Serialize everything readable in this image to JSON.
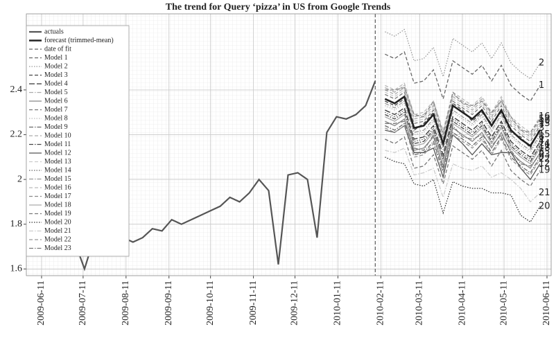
{
  "chart_data": {
    "type": "line",
    "title": "The trend for Query ‘pizza’ in US from Google Trends",
    "xlim": [
      "2009-05-31",
      "2010-06-14"
    ],
    "xticks": [
      "2009-06-11",
      "2009-07-11",
      "2009-08-11",
      "2009-09-11",
      "2009-10-11",
      "2009-11-11",
      "2009-12-11",
      "2010-01-11",
      "2010-02-11",
      "2010-03-11",
      "2010-04-11",
      "2010-05-11",
      "2010-06-11"
    ],
    "ylim": [
      1.57,
      2.74
    ],
    "yticks": [
      1.6,
      1.8,
      2,
      2.2,
      2.4
    ],
    "grid": true,
    "legend": "upper left",
    "actuals": {
      "name": "actuals",
      "color": "#555555",
      "x": [
        "2009-07-05",
        "2009-07-12",
        "2009-07-19",
        "2009-07-26",
        "2009-08-02",
        "2009-08-09",
        "2009-08-16",
        "2009-08-23",
        "2009-08-30",
        "2009-09-06",
        "2009-09-13",
        "2009-09-20",
        "2009-09-27",
        "2009-10-04",
        "2009-10-11",
        "2009-10-18",
        "2009-10-25",
        "2009-11-01",
        "2009-11-08",
        "2009-11-15",
        "2009-11-22",
        "2009-11-29",
        "2009-12-06",
        "2009-12-13",
        "2009-12-20",
        "2009-12-27",
        "2010-01-03",
        "2010-01-10",
        "2010-01-17",
        "2010-01-24",
        "2010-01-31",
        "2010-02-07"
      ],
      "values": [
        1.72,
        1.6,
        1.74,
        1.76,
        1.75,
        1.74,
        1.72,
        1.74,
        1.78,
        1.77,
        1.82,
        1.8,
        1.82,
        1.84,
        1.86,
        1.88,
        1.92,
        1.9,
        1.94,
        2.0,
        1.95,
        1.62,
        2.02,
        2.03,
        2.0,
        1.74,
        2.21,
        2.28,
        2.27,
        2.29,
        2.33,
        2.44
      ]
    },
    "forecast": {
      "name": "forecast (trimmed-mean)",
      "color": "#222222",
      "x": [
        "2010-02-14",
        "2010-02-21",
        "2010-02-28",
        "2010-03-07",
        "2010-03-14",
        "2010-03-21",
        "2010-03-28",
        "2010-04-04",
        "2010-04-11",
        "2010-04-18",
        "2010-04-25",
        "2010-05-02",
        "2010-05-09",
        "2010-05-16",
        "2010-05-23",
        "2010-05-30",
        "2010-06-06"
      ],
      "values": [
        2.36,
        2.34,
        2.37,
        2.23,
        2.24,
        2.29,
        2.16,
        2.33,
        2.3,
        2.27,
        2.31,
        2.24,
        2.31,
        2.22,
        2.18,
        2.15,
        2.22
      ]
    },
    "date_of_fit": {
      "name": "date of fit",
      "x": "2010-02-07",
      "color": "#666666"
    },
    "models": [
      {
        "name": "Model 1",
        "label": "1",
        "color": "#666666",
        "dash": "dashed",
        "values": [
          2.56,
          2.54,
          2.57,
          2.43,
          2.44,
          2.49,
          2.36,
          2.53,
          2.5,
          2.47,
          2.51,
          2.44,
          2.51,
          2.42,
          2.38,
          2.35,
          2.42
        ]
      },
      {
        "name": "Model 2",
        "label": "2",
        "color": "#999999",
        "dash": "dotted",
        "values": [
          2.66,
          2.64,
          2.67,
          2.53,
          2.54,
          2.59,
          2.46,
          2.63,
          2.6,
          2.57,
          2.61,
          2.54,
          2.61,
          2.52,
          2.48,
          2.45,
          2.52
        ]
      },
      {
        "name": "Model 3",
        "label": "3",
        "color": "#444444",
        "dash": "dashed",
        "values": [
          2.35,
          2.33,
          2.36,
          2.22,
          2.25,
          2.3,
          2.15,
          2.34,
          2.31,
          2.26,
          2.3,
          2.25,
          2.3,
          2.21,
          2.19,
          2.14,
          2.23
        ]
      },
      {
        "name": "Model 4",
        "label": "4",
        "color": "#333333",
        "dash": "longdash",
        "values": [
          2.31,
          2.29,
          2.32,
          2.18,
          2.19,
          2.24,
          2.11,
          2.28,
          2.25,
          2.22,
          2.26,
          2.19,
          2.26,
          2.17,
          2.13,
          2.1,
          2.17
        ]
      },
      {
        "name": "Model 5",
        "label": "5",
        "color": "#aaaaaa",
        "dash": "dashdot",
        "values": [
          2.41,
          2.39,
          2.42,
          2.28,
          2.29,
          2.34,
          2.21,
          2.38,
          2.35,
          2.32,
          2.36,
          2.29,
          2.36,
          2.27,
          2.23,
          2.2,
          2.27
        ]
      },
      {
        "name": "Model 6",
        "label": "6",
        "color": "#888888",
        "dash": "solid",
        "values": [
          2.26,
          2.24,
          2.27,
          2.13,
          2.14,
          2.19,
          2.06,
          2.23,
          2.2,
          2.17,
          2.21,
          2.14,
          2.21,
          2.12,
          2.08,
          2.05,
          2.12
        ]
      },
      {
        "name": "Model 7",
        "label": "7",
        "color": "#777777",
        "dash": "dashed",
        "values": [
          2.38,
          2.36,
          2.39,
          2.25,
          2.26,
          2.31,
          2.18,
          2.35,
          2.32,
          2.29,
          2.33,
          2.26,
          2.33,
          2.24,
          2.2,
          2.17,
          2.24
        ]
      },
      {
        "name": "Model 8",
        "label": "8",
        "color": "#bbbbbb",
        "dash": "dotted",
        "values": [
          2.33,
          2.31,
          2.34,
          2.2,
          2.21,
          2.26,
          2.13,
          2.3,
          2.27,
          2.24,
          2.28,
          2.21,
          2.28,
          2.19,
          2.15,
          2.12,
          2.19
        ]
      },
      {
        "name": "Model 9",
        "label": "9",
        "color": "#666666",
        "dash": "dashdot",
        "values": [
          2.24,
          2.22,
          2.25,
          2.11,
          2.12,
          2.17,
          2.04,
          2.21,
          2.18,
          2.15,
          2.19,
          2.12,
          2.19,
          2.1,
          2.06,
          2.03,
          2.1
        ]
      },
      {
        "name": "Model 10",
        "label": "10",
        "color": "#aaaaaa",
        "dash": "dashed",
        "values": [
          2.4,
          2.38,
          2.41,
          2.27,
          2.28,
          2.33,
          2.2,
          2.37,
          2.34,
          2.31,
          2.35,
          2.28,
          2.35,
          2.26,
          2.22,
          2.19,
          2.26
        ]
      },
      {
        "name": "Model 11",
        "label": "11",
        "color": "#444444",
        "dash": "dashdot",
        "values": [
          2.29,
          2.27,
          2.3,
          2.16,
          2.17,
          2.22,
          2.09,
          2.26,
          2.23,
          2.2,
          2.24,
          2.17,
          2.24,
          2.15,
          2.11,
          2.08,
          2.15
        ]
      },
      {
        "name": "Model 12",
        "label": "12",
        "color": "#555555",
        "dash": "solid",
        "values": [
          2.22,
          2.21,
          2.24,
          2.12,
          2.12,
          2.14,
          2.01,
          2.2,
          2.16,
          2.11,
          2.16,
          2.11,
          2.12,
          2.12,
          2.05,
          2.0,
          2.07
        ]
      },
      {
        "name": "Model 13",
        "label": "13",
        "color": "#cccccc",
        "dash": "dashed",
        "values": [
          2.39,
          2.37,
          2.4,
          2.26,
          2.27,
          2.32,
          2.19,
          2.36,
          2.33,
          2.3,
          2.34,
          2.27,
          2.34,
          2.25,
          2.21,
          2.18,
          2.25
        ]
      },
      {
        "name": "Model 14",
        "label": "14",
        "color": "#666666",
        "dash": "dotted",
        "values": [
          2.3,
          2.28,
          2.31,
          2.17,
          2.18,
          2.23,
          2.1,
          2.27,
          2.24,
          2.21,
          2.25,
          2.18,
          2.25,
          2.16,
          2.12,
          2.09,
          2.16
        ]
      },
      {
        "name": "Model 15",
        "label": "15",
        "color": "#999999",
        "dash": "dashdot",
        "values": [
          2.34,
          2.32,
          2.35,
          2.21,
          2.22,
          2.27,
          2.14,
          2.31,
          2.28,
          2.25,
          2.29,
          2.22,
          2.29,
          2.2,
          2.16,
          2.13,
          2.2
        ]
      },
      {
        "name": "Model 16",
        "label": "16",
        "color": "#bbbbbb",
        "dash": "dashed",
        "values": [
          2.42,
          2.4,
          2.43,
          2.29,
          2.3,
          2.35,
          2.22,
          2.39,
          2.36,
          2.33,
          2.37,
          2.3,
          2.37,
          2.28,
          2.24,
          2.21,
          2.28
        ]
      },
      {
        "name": "Model 17",
        "label": "17",
        "color": "#888888",
        "dash": "dashed",
        "values": [
          2.4,
          2.4,
          2.41,
          2.29,
          2.28,
          2.35,
          2.2,
          2.39,
          2.34,
          2.33,
          2.35,
          2.3,
          2.35,
          2.28,
          2.22,
          2.21,
          2.27
        ]
      },
      {
        "name": "Model 18",
        "label": "18",
        "color": "#aaaaaa",
        "dash": "solid",
        "values": [
          2.28,
          2.26,
          2.29,
          2.15,
          2.16,
          2.21,
          2.08,
          2.25,
          2.22,
          2.19,
          2.23,
          2.16,
          2.23,
          2.14,
          2.1,
          2.07,
          2.14
        ]
      },
      {
        "name": "Model 19",
        "label": "19",
        "color": "#777777",
        "dash": "dashed",
        "values": [
          2.18,
          2.16,
          2.19,
          2.05,
          2.06,
          2.11,
          1.98,
          2.15,
          2.12,
          2.09,
          2.13,
          2.06,
          2.13,
          2.04,
          2.0,
          1.97,
          2.04
        ]
      },
      {
        "name": "Model 20",
        "label": "20",
        "color": "#333333",
        "dash": "dotted",
        "values": [
          2.1,
          2.08,
          2.07,
          1.98,
          1.97,
          2.0,
          1.85,
          1.99,
          1.97,
          1.96,
          1.96,
          1.94,
          1.94,
          1.93,
          1.84,
          1.81,
          1.88
        ]
      },
      {
        "name": "Model 21",
        "label": "21",
        "color": "#cccccc",
        "dash": "dashdot",
        "values": [
          2.13,
          2.12,
          2.14,
          2.02,
          2.03,
          2.05,
          1.92,
          2.07,
          2.05,
          2.04,
          2.06,
          2.01,
          2.03,
          2.0,
          1.96,
          1.9,
          1.94
        ]
      },
      {
        "name": "Model 22",
        "label": "22",
        "color": "#999999",
        "dash": "dashed",
        "values": [
          2.23,
          2.21,
          2.24,
          2.1,
          2.11,
          2.16,
          2.03,
          2.2,
          2.17,
          2.14,
          2.18,
          2.11,
          2.18,
          2.09,
          2.05,
          2.02,
          2.09
        ]
      },
      {
        "name": "Model 23",
        "label": "23",
        "color": "#777777",
        "dash": "dashdot",
        "values": [
          2.25,
          2.25,
          2.26,
          2.14,
          2.13,
          2.2,
          2.05,
          2.24,
          2.19,
          2.18,
          2.2,
          2.15,
          2.2,
          2.13,
          2.07,
          2.06,
          2.11
        ]
      }
    ]
  }
}
